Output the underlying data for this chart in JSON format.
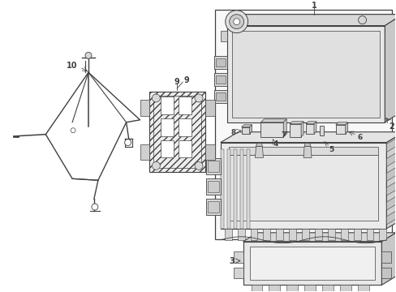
{
  "bg_color": "#ffffff",
  "line_color": "#404040",
  "fill_light": "#f0f0f0",
  "fill_med": "#e0e0e0",
  "fill_dark": "#c8c8c8",
  "figsize": [
    4.89,
    3.6
  ],
  "dpi": 100
}
